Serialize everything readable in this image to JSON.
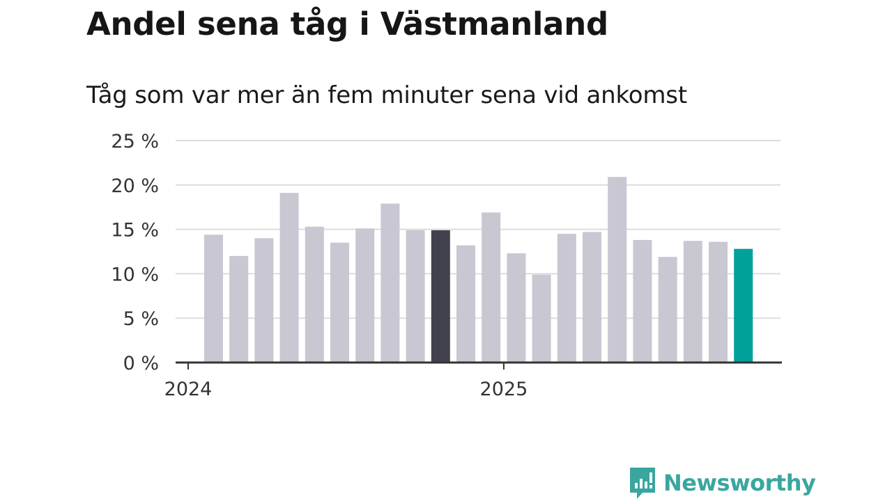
{
  "chart_data": {
    "type": "bar",
    "title": "Andel sena tåg i Västmanland",
    "subtitle": "Tåg som var mer än fem minuter sena vid ankomst",
    "xlabel": "",
    "ylabel": "",
    "categories": [
      "2024-01",
      "2024-02",
      "2024-03",
      "2024-04",
      "2024-05",
      "2024-06",
      "2024-07",
      "2024-08",
      "2024-09",
      "2024-10",
      "2024-11",
      "2024-12",
      "2025-01",
      "2025-02",
      "2025-03",
      "2025-04",
      "2025-05",
      "2025-06",
      "2025-07",
      "2025-08",
      "2025-09",
      "2025-10"
    ],
    "values": [
      14.4,
      12.0,
      14.0,
      19.1,
      15.3,
      13.5,
      15.1,
      17.9,
      14.9,
      14.9,
      13.2,
      16.9,
      12.3,
      9.9,
      14.5,
      14.7,
      20.9,
      13.8,
      11.9,
      13.7,
      13.6,
      12.8
    ],
    "highlight": {
      "2024-10": "#42424e",
      "2025-10": "#00a19b"
    },
    "bar_color": "#c8c7d2",
    "ylim": [
      0,
      25
    ],
    "yticks": [
      0,
      5,
      10,
      15,
      20,
      25
    ],
    "ytick_labels": [
      "0 %",
      "5 %",
      "10 %",
      "15 %",
      "20 %",
      "25 %"
    ],
    "xtick_labels": [
      {
        "label": "2024",
        "at": "2024-01"
      },
      {
        "label": "2025",
        "at": "2025-01"
      }
    ],
    "grid": true,
    "legend": "none"
  },
  "brand": {
    "name": "Newsworthy",
    "icon": "newsworthy-logo-icon",
    "color": "#3aa6a0"
  }
}
